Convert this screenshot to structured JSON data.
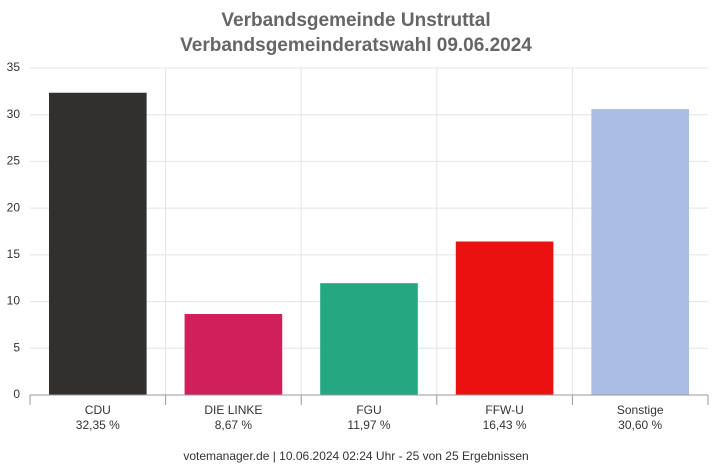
{
  "chart_data": {
    "type": "bar",
    "title": "Verbandsgemeinde Unstruttal",
    "subtitle": "Verbandsgemeinderatswahl 09.06.2024",
    "categories": [
      "CDU",
      "DIE LINKE",
      "FGU",
      "FFW-U",
      "Sonstige"
    ],
    "values": [
      32.35,
      8.67,
      11.97,
      16.43,
      30.6
    ],
    "value_labels": [
      "32,35 %",
      "8,67 %",
      "11,97 %",
      "16,43 %",
      "30,60 %"
    ],
    "colors": [
      "#32302e",
      "#d01f5a",
      "#23a880",
      "#ec1111",
      "#aabde4"
    ],
    "ylim": [
      0,
      35
    ],
    "yticks": [
      0,
      5,
      10,
      15,
      20,
      25,
      30,
      35
    ],
    "grid": true,
    "footer": "votemanager.de | 10.06.2024 02:24 Uhr - 25 von 25 Ergebnissen"
  }
}
